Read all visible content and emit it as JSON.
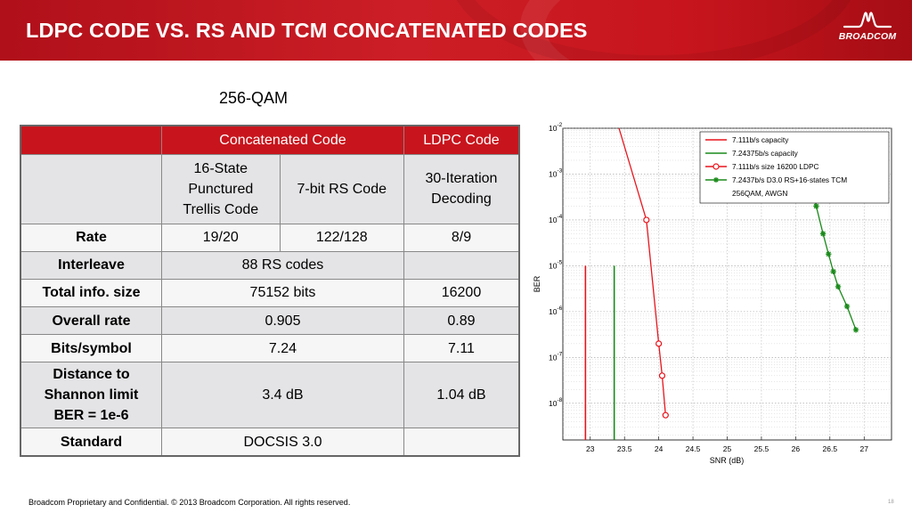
{
  "slide": {
    "title": "LDPC CODE VS. RS AND TCM CONCATENATED CODES",
    "logo_text": "BROADCOM",
    "subtitle": "256-QAM",
    "footer": "Broadcom Proprietary and Confidential.  © 2013 Broadcom Corporation.  All rights reserved.",
    "page_number": "18"
  },
  "table": {
    "header": {
      "concatenated": "Concatenated Code",
      "ldpc": "LDPC Code"
    },
    "subheader": {
      "tcm": [
        "16-State",
        "Punctured",
        "Trellis Code"
      ],
      "rs": "7-bit RS Code",
      "ldpc": [
        "30-Iteration",
        "Decoding"
      ]
    },
    "rows": {
      "rate": {
        "label": "Rate",
        "tcm": "19/20",
        "rs": "122/128",
        "ldpc": "8/9"
      },
      "interleave": {
        "label": "Interleave",
        "concat": "88 RS codes",
        "ldpc": ""
      },
      "total_info": {
        "label": "Total info. size",
        "concat": "75152 bits",
        "ldpc": "16200"
      },
      "overall_rate": {
        "label": "Overall rate",
        "concat": "0.905",
        "ldpc": "0.89"
      },
      "bits_symbol": {
        "label": "Bits/symbol",
        "concat": "7.24",
        "ldpc": "7.11"
      },
      "distance": {
        "label": [
          "Distance to",
          "Shannon limit",
          "BER = 1e-6"
        ],
        "concat": "3.4 dB",
        "ldpc": "1.04 dB"
      },
      "standard": {
        "label": "Standard",
        "concat": "DOCSIS 3.0",
        "ldpc": ""
      }
    }
  },
  "chart_data": {
    "type": "line",
    "title": "",
    "xlabel": "SNR (dB)",
    "ylabel": "BER",
    "xlim": [
      22.6,
      27.4
    ],
    "ylim_log10": [
      -8.8,
      -2
    ],
    "y_scale": "log",
    "grid": true,
    "legend_position": "top-right",
    "x_ticks": [
      "23",
      "23.5",
      "24",
      "24.5",
      "25",
      "25.5",
      "26",
      "26.5",
      "27"
    ],
    "y_ticks": [
      {
        "base": "10",
        "exp": "-2"
      },
      {
        "base": "10",
        "exp": "-3"
      },
      {
        "base": "10",
        "exp": "-4"
      },
      {
        "base": "10",
        "exp": "-5"
      },
      {
        "base": "10",
        "exp": "-6"
      },
      {
        "base": "10",
        "exp": "-7"
      },
      {
        "base": "10",
        "exp": "-8"
      }
    ],
    "series": [
      {
        "name": "7.111b/s capacity",
        "color": "#e8141c",
        "marker": "none",
        "kind": "vertical",
        "x": 22.93
      },
      {
        "name": "7.24375b/s capacity",
        "color": "#1a8a1a",
        "marker": "none",
        "kind": "vertical",
        "x": 23.35
      },
      {
        "name": "7.111b/s size 16200 LDPC",
        "color": "#e8141c",
        "marker": "circle",
        "x": [
          23.42,
          23.82,
          24.0,
          24.05,
          24.1
        ],
        "y": [
          0.01,
          0.0001,
          2e-07,
          4e-08,
          5.5e-09
        ]
      },
      {
        "name": "7.2437b/s D3.0 RS+16-states TCM",
        "color": "#1a8a1a",
        "marker": "star",
        "x": [
          26.22,
          26.3,
          26.4,
          26.48,
          26.55,
          26.62,
          26.75,
          26.88
        ],
        "y": [
          0.001,
          0.0002,
          5e-05,
          1.8e-05,
          7.5e-06,
          3.5e-06,
          1.3e-06,
          4e-07
        ]
      }
    ],
    "legend_note": "256QAM, AWGN",
    "colors": {
      "red": "#e8141c",
      "green": "#1a8a1a"
    }
  }
}
